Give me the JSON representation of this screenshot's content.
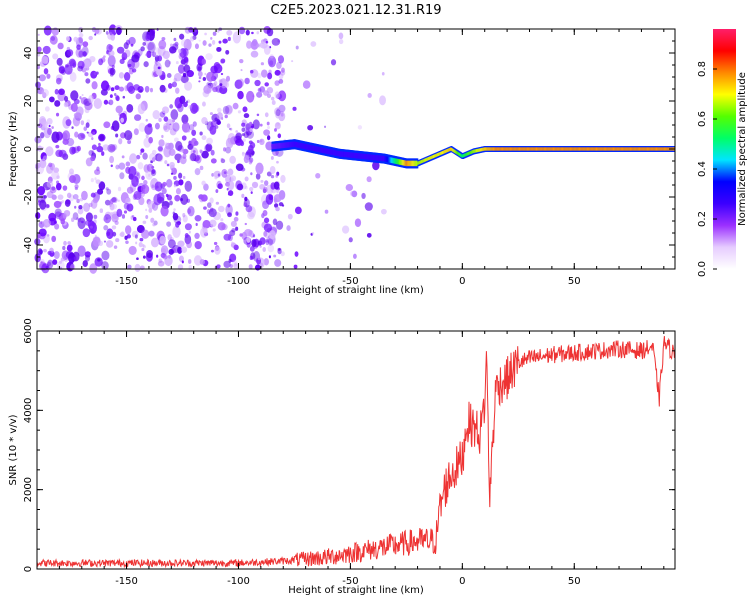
{
  "figure_title": "C2E5.2023.021.12.31.R19",
  "colors": {
    "snr_line": "#ee3333",
    "spectrum_scatter": "#7a1fff",
    "colormap": [
      "#ffffff",
      "#e6ccff",
      "#9b30ff",
      "#3b00ff",
      "#0000ff",
      "#00e5ff",
      "#00ff66",
      "#55ff00",
      "#ffff00",
      "#ff8800",
      "#ff0000",
      "#ff1f6a"
    ]
  },
  "chart_data": [
    {
      "type": "heatmap",
      "title": "",
      "xlabel": "Height of straight line (km)",
      "ylabel": "Frequency (Hz)",
      "xlim": [
        -190,
        95
      ],
      "ylim": [
        -50,
        50
      ],
      "x_ticks": [
        -150,
        -100,
        -50,
        0,
        50
      ],
      "y_ticks": [
        -40,
        -20,
        0,
        20,
        40
      ],
      "colorbar": {
        "label": "Normalized spectral amplitude",
        "range": [
          0,
          0.96
        ],
        "ticks": [
          0.0,
          0.2,
          0.4,
          0.6,
          0.8
        ]
      },
      "ridge": {
        "x": [
          -85,
          -75,
          -65,
          -55,
          -45,
          -35,
          -25,
          -20,
          -15,
          -10,
          -5,
          0,
          5,
          10,
          15,
          20,
          30,
          50,
          70,
          95
        ],
        "frequency": [
          1,
          2,
          0,
          -2,
          -3,
          -4,
          -6,
          -6,
          -4,
          -2,
          0,
          -3,
          -1,
          0,
          0,
          0,
          0,
          0,
          0,
          0
        ],
        "amplitude": [
          0.25,
          0.3,
          0.3,
          0.3,
          0.3,
          0.3,
          0.9,
          0.75,
          0.8,
          0.8,
          0.85,
          0.6,
          0.75,
          0.85,
          0.9,
          0.9,
          0.9,
          0.9,
          0.9,
          0.9
        ]
      },
      "noise_region_x": [
        -190,
        -80
      ],
      "grid": false
    },
    {
      "type": "line",
      "title": "",
      "xlabel": "Height of straight line (km)",
      "ylabel": "SNR (10 * v/v)",
      "xlim": [
        -190,
        95
      ],
      "ylim": [
        0,
        6000
      ],
      "x_ticks": [
        -150,
        -100,
        -50,
        0,
        50
      ],
      "y_ticks": [
        0,
        2000,
        4000,
        6000
      ],
      "x": [
        -190,
        -150,
        -100,
        -80,
        -70,
        -60,
        -50,
        -40,
        -30,
        -20,
        -12,
        -10,
        -8,
        -5,
        -2,
        0,
        2,
        5,
        8,
        10,
        11,
        12,
        15,
        20,
        25,
        30,
        40,
        50,
        60,
        70,
        80,
        85,
        88,
        90,
        92,
        95
      ],
      "y": [
        150,
        150,
        150,
        200,
        250,
        300,
        400,
        500,
        600,
        700,
        700,
        1500,
        2000,
        2400,
        2600,
        2800,
        3700,
        3600,
        3400,
        4200,
        5500,
        1700,
        4600,
        4800,
        5200,
        5300,
        5400,
        5450,
        5500,
        5550,
        5500,
        5600,
        4300,
        5700,
        5600,
        5400
      ],
      "grid": false
    }
  ]
}
